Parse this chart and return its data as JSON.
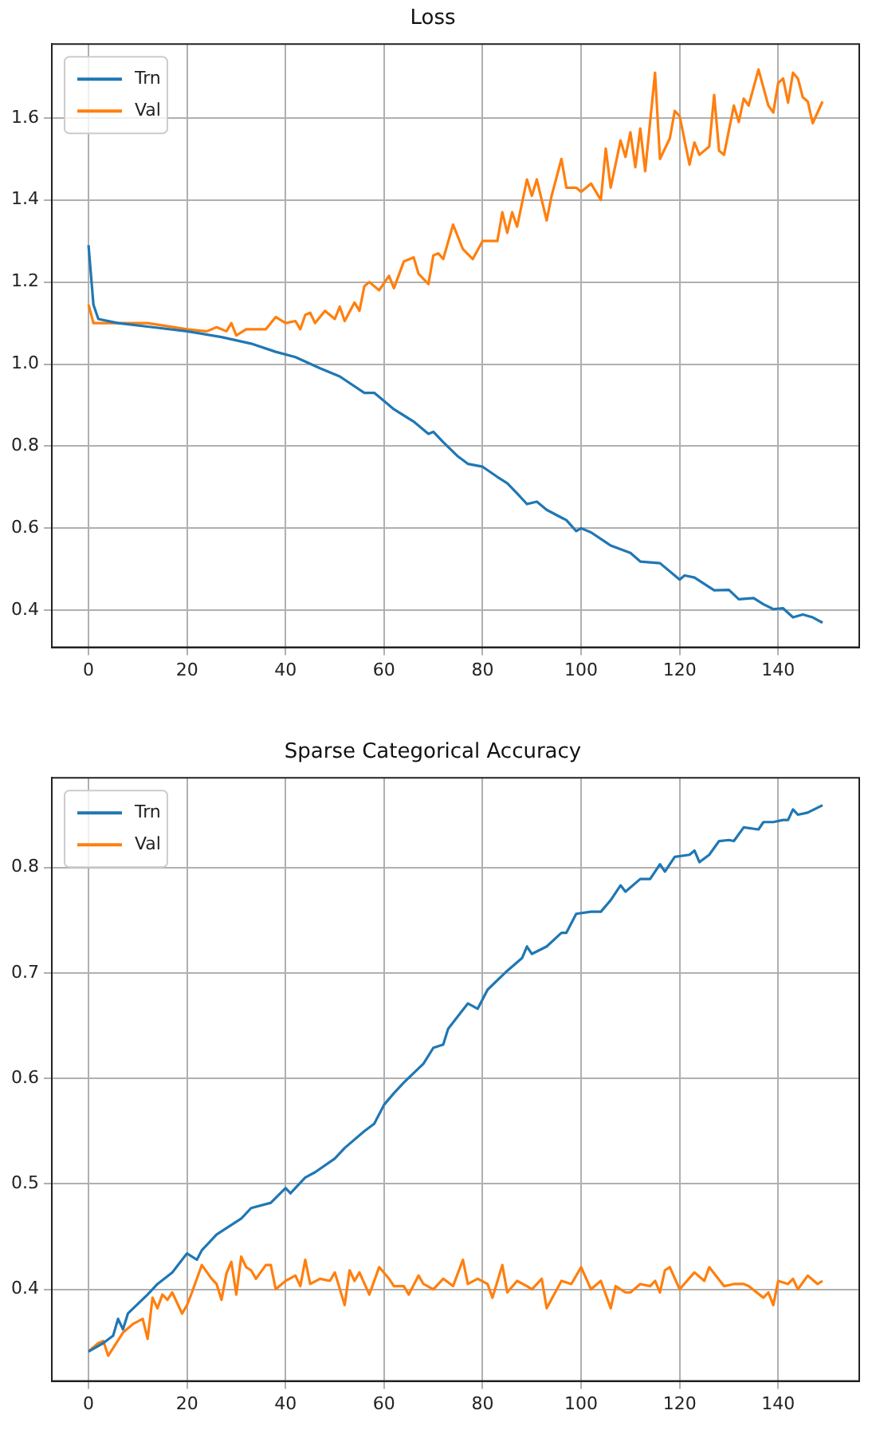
{
  "chart_data": [
    {
      "type": "line",
      "title": "Loss",
      "xlim": [
        -7.45,
        156.45
      ],
      "ylim": [
        0.31,
        1.78
      ],
      "xticks": [
        0,
        20,
        40,
        60,
        80,
        100,
        120,
        140
      ],
      "yticks": [
        0.4,
        0.6,
        0.8,
        {
          "value": 1.0,
          "label": "1.0"
        },
        1.2,
        1.4,
        1.6
      ],
      "grid": true,
      "legend": "top left",
      "series": [
        {
          "name": "Trn",
          "color": "#1f77b4",
          "x": [
            0,
            1,
            2,
            6,
            13,
            20,
            27,
            33,
            38,
            42,
            47,
            51,
            56,
            58,
            62,
            66,
            69,
            70,
            72,
            75,
            77,
            80,
            83,
            85,
            87,
            89,
            91,
            93,
            96,
            97,
            99,
            100,
            102,
            106,
            110,
            112,
            116,
            120,
            121,
            123,
            127,
            130,
            132,
            135,
            137,
            139,
            141,
            143,
            145,
            147,
            149
          ],
          "values": [
            1.29,
            1.145,
            1.11,
            1.1,
            1.09,
            1.08,
            1.066,
            1.05,
            1.03,
            1.017,
            0.99,
            0.97,
            0.93,
            0.93,
            0.89,
            0.86,
            0.83,
            0.835,
            0.81,
            0.775,
            0.757,
            0.75,
            0.725,
            0.71,
            0.685,
            0.659,
            0.665,
            0.645,
            0.626,
            0.62,
            0.593,
            0.6,
            0.59,
            0.558,
            0.54,
            0.519,
            0.515,
            0.475,
            0.485,
            0.48,
            0.449,
            0.45,
            0.427,
            0.43,
            0.415,
            0.403,
            0.405,
            0.383,
            0.39,
            0.383,
            0.37
          ]
        },
        {
          "name": "Val",
          "color": "#ff7f0e",
          "x": [
            0,
            1,
            5,
            12,
            20,
            24,
            26,
            28,
            29,
            30,
            32,
            36,
            38,
            40,
            42,
            43,
            44,
            45,
            46,
            48,
            50,
            51,
            52,
            54,
            55,
            56,
            57,
            59,
            61,
            62,
            64,
            66,
            67,
            69,
            70,
            71,
            72,
            74,
            76,
            78,
            80,
            83,
            84,
            85,
            86,
            87,
            89,
            90,
            91,
            93,
            94,
            96,
            97,
            99,
            100,
            102,
            104,
            105,
            106,
            108,
            109,
            110,
            111,
            112,
            113,
            115,
            116,
            118,
            119,
            120,
            122,
            123,
            124,
            126,
            127,
            128,
            129,
            131,
            132,
            133,
            134,
            136,
            138,
            139,
            140,
            141,
            142,
            143,
            144,
            145,
            146,
            147,
            149
          ],
          "values": [
            1.145,
            1.1,
            1.1,
            1.1,
            1.085,
            1.08,
            1.09,
            1.08,
            1.1,
            1.07,
            1.085,
            1.085,
            1.115,
            1.1,
            1.105,
            1.085,
            1.12,
            1.125,
            1.1,
            1.13,
            1.11,
            1.14,
            1.105,
            1.15,
            1.13,
            1.19,
            1.2,
            1.18,
            1.215,
            1.185,
            1.25,
            1.26,
            1.22,
            1.195,
            1.265,
            1.27,
            1.256,
            1.34,
            1.28,
            1.256,
            1.3,
            1.3,
            1.37,
            1.32,
            1.37,
            1.335,
            1.45,
            1.41,
            1.45,
            1.35,
            1.41,
            1.5,
            1.43,
            1.43,
            1.42,
            1.44,
            1.4,
            1.525,
            1.43,
            1.545,
            1.505,
            1.565,
            1.48,
            1.574,
            1.47,
            1.71,
            1.5,
            1.55,
            1.617,
            1.604,
            1.486,
            1.54,
            1.51,
            1.53,
            1.656,
            1.52,
            1.51,
            1.63,
            1.59,
            1.647,
            1.63,
            1.718,
            1.63,
            1.613,
            1.685,
            1.696,
            1.637,
            1.71,
            1.696,
            1.65,
            1.64,
            1.587,
            1.64
          ]
        }
      ]
    },
    {
      "type": "line",
      "title": "Sparse Categorical Accuracy",
      "xlim": [
        -7.45,
        156.45
      ],
      "ylim": [
        0.313,
        0.885
      ],
      "xticks": [
        0,
        20,
        40,
        60,
        80,
        100,
        120,
        140
      ],
      "yticks": [
        0.4,
        0.5,
        0.6,
        0.7,
        0.8
      ],
      "grid": true,
      "legend": "top left",
      "series": [
        {
          "name": "Trn",
          "color": "#1f77b4",
          "x": [
            0,
            3,
            5,
            6,
            7,
            8,
            12,
            14,
            17,
            20,
            22,
            23,
            26,
            31,
            33,
            37,
            40,
            41,
            44,
            46,
            50,
            52,
            56,
            58,
            60,
            62,
            64,
            68,
            70,
            72,
            73,
            77,
            79,
            81,
            85,
            88,
            89,
            90,
            93,
            96,
            97,
            99,
            102,
            104,
            106,
            108,
            109,
            112,
            114,
            116,
            117,
            119,
            122,
            123,
            124,
            126,
            128,
            130,
            131,
            133,
            136,
            137,
            139,
            141,
            142,
            143,
            144,
            146,
            149
          ],
          "values": [
            0.341,
            0.349,
            0.356,
            0.372,
            0.362,
            0.377,
            0.395,
            0.405,
            0.416,
            0.434,
            0.428,
            0.437,
            0.452,
            0.467,
            0.477,
            0.482,
            0.496,
            0.491,
            0.506,
            0.511,
            0.524,
            0.534,
            0.55,
            0.557,
            0.575,
            0.586,
            0.596,
            0.614,
            0.629,
            0.632,
            0.647,
            0.671,
            0.666,
            0.684,
            0.702,
            0.714,
            0.725,
            0.718,
            0.725,
            0.738,
            0.738,
            0.756,
            0.758,
            0.758,
            0.769,
            0.783,
            0.777,
            0.789,
            0.789,
            0.803,
            0.796,
            0.81,
            0.812,
            0.816,
            0.805,
            0.812,
            0.825,
            0.826,
            0.825,
            0.838,
            0.836,
            0.843,
            0.843,
            0.845,
            0.845,
            0.855,
            0.85,
            0.852,
            0.859
          ]
        },
        {
          "name": "Val",
          "color": "#ff7f0e",
          "x": [
            0,
            2,
            3,
            4,
            7,
            9,
            11,
            12,
            13,
            14,
            15,
            16,
            17,
            19,
            20,
            21,
            22,
            23,
            25,
            26,
            27,
            28,
            29,
            30,
            31,
            32,
            33,
            34,
            36,
            37,
            38,
            40,
            42,
            43,
            44,
            45,
            47,
            49,
            50,
            52,
            53,
            54,
            55,
            57,
            59,
            61,
            62,
            64,
            65,
            67,
            68,
            70,
            72,
            74,
            76,
            77,
            79,
            81,
            82,
            84,
            85,
            87,
            89,
            90,
            92,
            93,
            96,
            98,
            100,
            102,
            104,
            106,
            107,
            109,
            110,
            112,
            114,
            115,
            116,
            117,
            118,
            120,
            123,
            125,
            126,
            129,
            131,
            133,
            134,
            137,
            138,
            139,
            140,
            142,
            143,
            144,
            146,
            148,
            149
          ],
          "values": [
            0.341,
            0.349,
            0.351,
            0.337,
            0.359,
            0.367,
            0.372,
            0.353,
            0.392,
            0.382,
            0.395,
            0.39,
            0.397,
            0.377,
            0.385,
            0.397,
            0.41,
            0.423,
            0.41,
            0.405,
            0.39,
            0.415,
            0.426,
            0.395,
            0.431,
            0.421,
            0.418,
            0.41,
            0.423,
            0.423,
            0.4,
            0.408,
            0.413,
            0.403,
            0.428,
            0.405,
            0.41,
            0.408,
            0.416,
            0.385,
            0.418,
            0.408,
            0.416,
            0.395,
            0.421,
            0.41,
            0.403,
            0.403,
            0.395,
            0.413,
            0.405,
            0.4,
            0.41,
            0.403,
            0.428,
            0.405,
            0.41,
            0.405,
            0.392,
            0.423,
            0.397,
            0.408,
            0.403,
            0.4,
            0.41,
            0.382,
            0.408,
            0.405,
            0.421,
            0.4,
            0.408,
            0.382,
            0.403,
            0.397,
            0.397,
            0.405,
            0.403,
            0.408,
            0.397,
            0.418,
            0.421,
            0.4,
            0.416,
            0.408,
            0.421,
            0.403,
            0.405,
            0.405,
            0.403,
            0.392,
            0.397,
            0.385,
            0.408,
            0.405,
            0.41,
            0.4,
            0.413,
            0.405,
            0.408
          ]
        }
      ]
    }
  ]
}
